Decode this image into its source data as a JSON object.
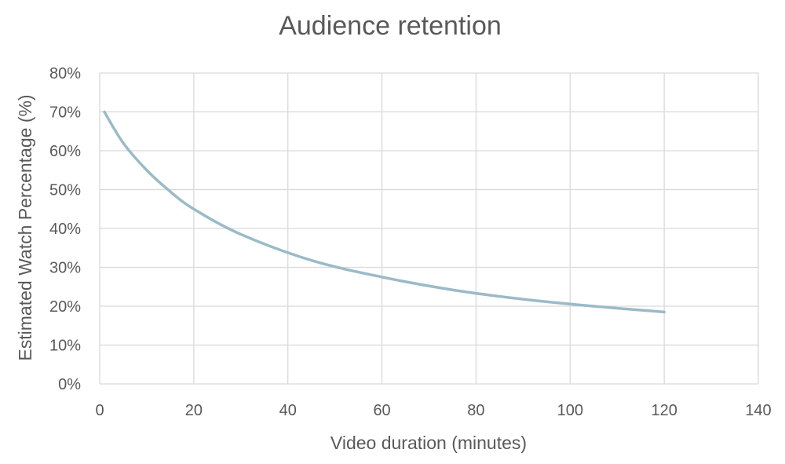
{
  "chart_data": {
    "type": "scatter",
    "title": "Audience retention",
    "xlabel": "Video duration (minutes)",
    "ylabel": "Estimated Watch Percentage (%)",
    "xlim": [
      0,
      140
    ],
    "ylim": [
      0,
      0.8
    ],
    "x_ticks": [
      "0",
      "20",
      "40",
      "60",
      "80",
      "100",
      "120",
      "140"
    ],
    "y_ticks": [
      "0%",
      "10%",
      "20%",
      "30%",
      "40%",
      "50%",
      "60%",
      "70%",
      "80%"
    ],
    "grid": true,
    "legend": "none",
    "series": [
      {
        "color": "#9bbac8",
        "style": "smooth-line",
        "x": [
          1,
          5,
          10,
          15,
          20,
          30,
          45,
          60,
          75,
          90,
          105,
          120
        ],
        "y": [
          0.7,
          0.62,
          0.55,
          0.495,
          0.45,
          0.385,
          0.318,
          0.275,
          0.242,
          0.218,
          0.2,
          0.185
        ]
      }
    ]
  }
}
